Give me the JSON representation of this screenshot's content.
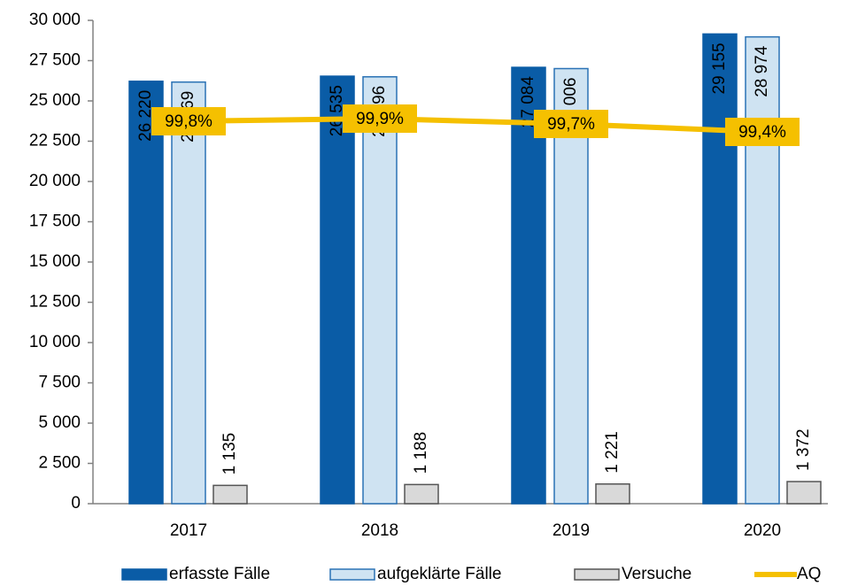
{
  "chart_data": {
    "type": "bar",
    "categories": [
      "2017",
      "2018",
      "2019",
      "2020"
    ],
    "series": [
      {
        "name": "erfasste Fälle",
        "color": "#0a5ca6",
        "stroke": "#0a5ca6",
        "label_color": "#ffffff",
        "values": [
          26220,
          26535,
          27084,
          29155
        ],
        "value_labels": [
          "26 220",
          "26 535",
          "27 084",
          "29 155"
        ]
      },
      {
        "name": "aufgeklärte Fälle",
        "color": "#cfe3f2",
        "stroke": "#2a72b5",
        "label_color": "#000000",
        "values": [
          26169,
          26496,
          27006,
          28974
        ],
        "value_labels": [
          "26 169",
          "26 496",
          "27 006",
          "28 974"
        ]
      },
      {
        "name": "Versuche",
        "color": "#d9d9d9",
        "stroke": "#555555",
        "label_color": "#000000",
        "values": [
          1135,
          1188,
          1221,
          1372
        ],
        "value_labels": [
          "1 135",
          "1 188",
          "1 221",
          "1 372"
        ]
      },
      {
        "name": "AQ",
        "type": "line",
        "axis": "y2",
        "color": "#f5c000",
        "values": [
          99.8,
          99.9,
          99.7,
          99.4
        ],
        "value_labels": [
          "99,8%",
          "99,9%",
          "99,7%",
          "99,4%"
        ]
      }
    ],
    "ylim": [
      0,
      30000
    ],
    "yticks": [
      0,
      {
        "value": 2500,
        "label": "2 500"
      },
      {
        "value": 5000,
        "label": "5 000"
      },
      {
        "value": 7500,
        "label": "7 500"
      },
      {
        "value": 10000,
        "label": "10 000"
      },
      {
        "value": 12500,
        "label": "12 500"
      },
      {
        "value": 15000,
        "label": "15 000"
      },
      {
        "value": 17500,
        "label": "17 500"
      },
      {
        "value": 20000,
        "label": "20 000"
      },
      {
        "value": 22500,
        "label": "22 500"
      },
      {
        "value": 25000,
        "label": "25 000"
      },
      {
        "value": 27500,
        "label": "27 500"
      },
      {
        "value": 30000,
        "label": "30 000"
      }
    ],
    "y2lim": [
      85.4,
      103.6
    ]
  }
}
